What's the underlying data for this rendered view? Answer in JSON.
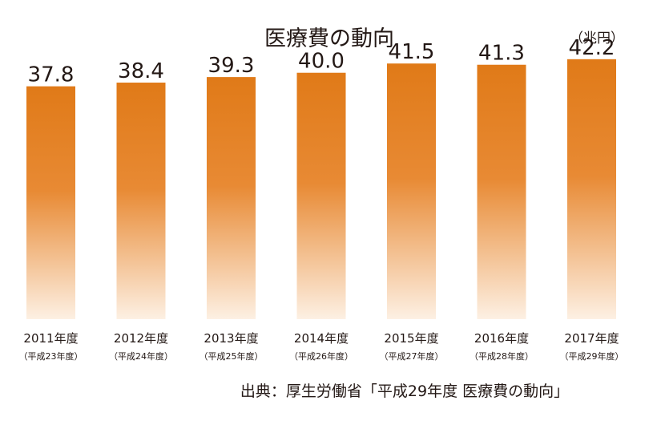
{
  "chart_data": {
    "type": "bar",
    "title": "医療費の動向",
    "unit": "（兆円）",
    "categories": [
      "2011年度",
      "2012年度",
      "2013年度",
      "2014年度",
      "2015年度",
      "2016年度",
      "2017年度"
    ],
    "subcategories": [
      "（平成23年度）",
      "（平成24年度）",
      "（平成25年度）",
      "（平成26年度）",
      "（平成27年度）",
      "（平成28年度）",
      "（平成29年度）"
    ],
    "values": [
      37.8,
      38.4,
      39.3,
      40.0,
      41.5,
      41.3,
      42.2
    ],
    "value_labels": [
      "37.8",
      "38.4",
      "39.3",
      "40.0",
      "41.5",
      "41.3",
      "42.2"
    ],
    "xlabel": "",
    "ylabel": "",
    "ylim": [
      0,
      44.0
    ],
    "grid": false,
    "colors": {
      "bar_top": "#e07a18",
      "bar_bottom": "#fdf0e3"
    }
  },
  "source": "出典：厚生労働省「平成29年度 医療費の動向」"
}
